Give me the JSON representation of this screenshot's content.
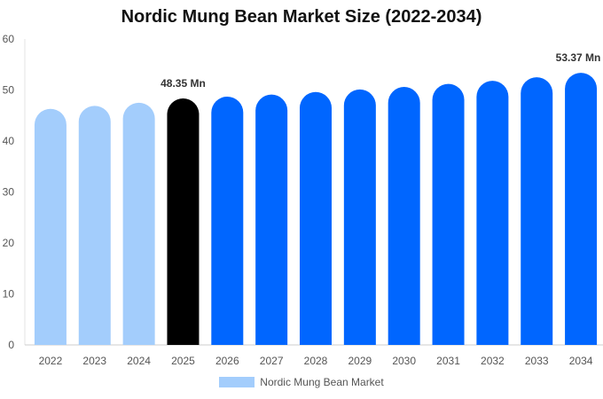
{
  "chart_data": {
    "type": "bar",
    "title": "Nordic Mung Bean Market Size (2022-2034)",
    "categories": [
      "2022",
      "2023",
      "2024",
      "2025",
      "2026",
      "2027",
      "2028",
      "2029",
      "2030",
      "2031",
      "2032",
      "2033",
      "2034"
    ],
    "series": [
      {
        "name": "Nordic Mung Bean Market",
        "values": [
          46.3,
          46.9,
          47.5,
          48.35,
          48.7,
          49.1,
          49.6,
          50.1,
          50.6,
          51.2,
          51.8,
          52.5,
          53.37
        ]
      }
    ],
    "bar_colors": [
      "#a3cdfc",
      "#a3cdfc",
      "#a3cdfc",
      "#000000",
      "#0066ff",
      "#0066ff",
      "#0066ff",
      "#0066ff",
      "#0066ff",
      "#0066ff",
      "#0066ff",
      "#0066ff",
      "#0066ff"
    ],
    "data_labels": [
      {
        "index": 3,
        "text": "48.35 Mn"
      },
      {
        "index": 12,
        "text": "53.37 Mn"
      }
    ],
    "ylim": [
      0,
      60
    ],
    "yticks": [
      0,
      10,
      20,
      30,
      40,
      50,
      60
    ],
    "xlabel": "",
    "ylabel": "",
    "grid": false,
    "legend": "bottom",
    "legend_color": "#a3cdfc"
  }
}
